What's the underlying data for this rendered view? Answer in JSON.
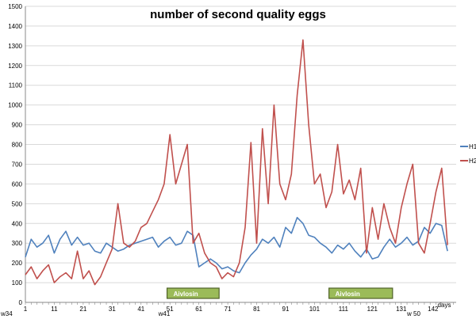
{
  "chart_data": {
    "type": "line",
    "title": "number of second quality eggs",
    "xlabel": "days",
    "ylabel": "",
    "ylim": [
      0,
      1500
    ],
    "xlim": [
      1,
      150
    ],
    "grid": true,
    "legend_position": "right",
    "yticks": [
      0,
      100,
      200,
      300,
      400,
      500,
      600,
      700,
      800,
      900,
      1000,
      1100,
      1200,
      1300,
      1400,
      1500
    ],
    "xticks": [
      1,
      11,
      21,
      31,
      41,
      51,
      61,
      71,
      81,
      91,
      101,
      111,
      121,
      131,
      142
    ],
    "series": [
      {
        "name": "H1",
        "color": "#4F81BD",
        "x": [
          1,
          3,
          5,
          7,
          9,
          11,
          13,
          15,
          17,
          19,
          21,
          23,
          25,
          27,
          29,
          31,
          33,
          35,
          37,
          39,
          41,
          43,
          45,
          47,
          49,
          51,
          53,
          55,
          57,
          59,
          61,
          63,
          65,
          67,
          69,
          71,
          73,
          75,
          77,
          79,
          81,
          83,
          85,
          87,
          89,
          91,
          93,
          95,
          97,
          99,
          101,
          103,
          105,
          107,
          109,
          111,
          113,
          115,
          117,
          119,
          121,
          123,
          125,
          127,
          129,
          131,
          133,
          135,
          137,
          139,
          141,
          143,
          145,
          147
        ],
        "y": [
          230,
          320,
          280,
          300,
          340,
          250,
          320,
          360,
          290,
          330,
          290,
          300,
          260,
          250,
          300,
          280,
          260,
          270,
          290,
          300,
          310,
          320,
          330,
          280,
          310,
          330,
          290,
          300,
          360,
          340,
          180,
          200,
          220,
          200,
          170,
          180,
          160,
          150,
          200,
          240,
          270,
          320,
          300,
          330,
          280,
          380,
          350,
          430,
          400,
          340,
          330,
          300,
          280,
          250,
          290,
          270,
          300,
          260,
          230,
          270,
          220,
          230,
          280,
          320,
          280,
          300,
          330,
          290,
          310,
          380,
          350,
          400,
          390,
          260
        ]
      },
      {
        "name": "H2",
        "color": "#C0504D",
        "x": [
          1,
          3,
          5,
          7,
          9,
          11,
          13,
          15,
          17,
          19,
          21,
          23,
          25,
          27,
          29,
          31,
          33,
          35,
          37,
          39,
          41,
          43,
          45,
          47,
          49,
          51,
          53,
          55,
          57,
          59,
          61,
          63,
          65,
          67,
          69,
          71,
          73,
          75,
          77,
          79,
          81,
          83,
          85,
          87,
          89,
          91,
          93,
          95,
          97,
          99,
          101,
          103,
          105,
          107,
          109,
          111,
          113,
          115,
          117,
          119,
          121,
          123,
          125,
          127,
          129,
          131,
          133,
          135,
          137,
          139,
          141,
          143,
          145,
          147
        ],
        "y": [
          140,
          180,
          120,
          160,
          190,
          100,
          130,
          150,
          120,
          260,
          120,
          160,
          90,
          130,
          200,
          270,
          500,
          300,
          280,
          310,
          380,
          400,
          460,
          520,
          600,
          850,
          600,
          700,
          800,
          300,
          350,
          250,
          200,
          180,
          120,
          150,
          130,
          200,
          380,
          810,
          300,
          880,
          500,
          1000,
          600,
          520,
          650,
          1050,
          1330,
          900,
          600,
          650,
          480,
          560,
          800,
          550,
          620,
          520,
          680,
          250,
          480,
          320,
          500,
          380,
          300,
          480,
          600,
          700,
          300,
          250,
          400,
          560,
          680,
          290
        ]
      }
    ],
    "annotations": [
      {
        "text": "w34",
        "x": -1,
        "y": 0
      },
      {
        "text": "w41",
        "x": 47,
        "y": 0
      },
      {
        "text": "w 50",
        "x": 133,
        "y": 0
      }
    ],
    "treatments": [
      {
        "label": "Aivlosin",
        "x_start": 50,
        "x_end": 68
      },
      {
        "label": "Aivlosin",
        "x_start": 106,
        "x_end": 128
      }
    ],
    "colors": {
      "grid": "#D9D9D9",
      "treatment_fill": "#9BBB59",
      "treatment_border": "#4F6228"
    }
  }
}
